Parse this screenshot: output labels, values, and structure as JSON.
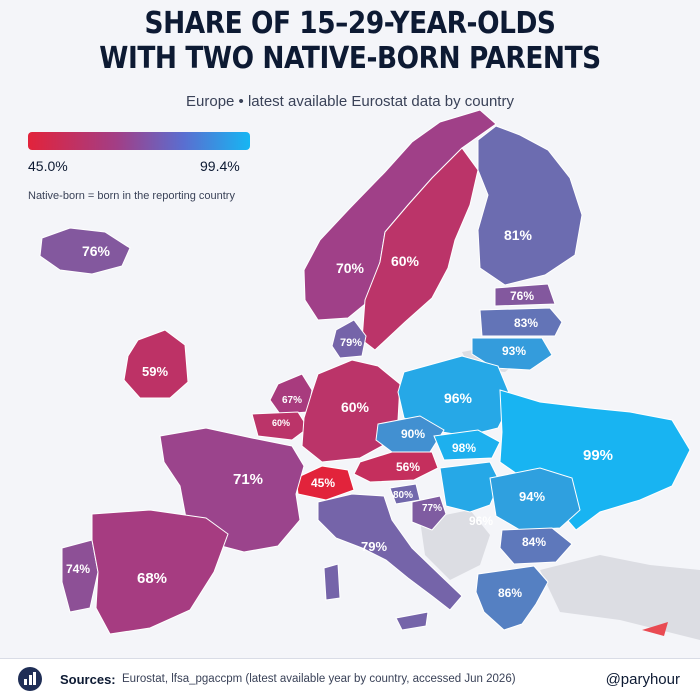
{
  "title_line1": "SHARE OF 15–29-YEAR-OLDS",
  "title_line2": "WITH TWO NATIVE-BORN PARENTS",
  "subtitle": "Europe • latest available Eurostat data by country",
  "legend": {
    "min_label": "45.0%",
    "max_label": "99.4%",
    "min_value": 45.0,
    "max_value": 99.4,
    "color_low": "#e2233b",
    "color_mid": "#a23e86",
    "color_high": "#16b6f3"
  },
  "note": "Native-born = born in the reporting country",
  "countries": [
    {
      "key": "iceland",
      "label": "76%",
      "value": 76
    },
    {
      "key": "norway",
      "label": "70%",
      "value": 70
    },
    {
      "key": "sweden",
      "label": "60%",
      "value": 60
    },
    {
      "key": "finland",
      "label": "81%",
      "value": 81
    },
    {
      "key": "estonia",
      "label": "76%",
      "value": 76
    },
    {
      "key": "latvia",
      "label": "83%",
      "value": 83
    },
    {
      "key": "lithuania",
      "label": "93%",
      "value": 93
    },
    {
      "key": "denmark",
      "label": "79%",
      "value": 79
    },
    {
      "key": "ireland",
      "label": "59%",
      "value": 59
    },
    {
      "key": "netherlands",
      "label": "67%",
      "value": 67
    },
    {
      "key": "belgium",
      "label": "60%",
      "value": 60
    },
    {
      "key": "germany",
      "label": "60%",
      "value": 60
    },
    {
      "key": "poland",
      "label": "96%",
      "value": 96
    },
    {
      "key": "czechia",
      "label": "90%",
      "value": 90
    },
    {
      "key": "slovakia",
      "label": "98%",
      "value": 98
    },
    {
      "key": "ukraine",
      "label": "99%",
      "value": 99
    },
    {
      "key": "austria",
      "label": "56%",
      "value": 56
    },
    {
      "key": "switzerland",
      "label": "45%",
      "value": 45
    },
    {
      "key": "france",
      "label": "71%",
      "value": 71
    },
    {
      "key": "slovenia",
      "label": "80%",
      "value": 80
    },
    {
      "key": "croatia",
      "label": "77%",
      "value": 77
    },
    {
      "key": "hungary",
      "label": "96%",
      "value": 96
    },
    {
      "key": "romania",
      "label": "94%",
      "value": 94
    },
    {
      "key": "bulgaria",
      "label": "84%",
      "value": 84
    },
    {
      "key": "italy",
      "label": "79%",
      "value": 79
    },
    {
      "key": "portugal",
      "label": "74%",
      "value": 74
    },
    {
      "key": "spain",
      "label": "68%",
      "value": 68
    },
    {
      "key": "greece",
      "label": "86%",
      "value": 86
    }
  ],
  "footer": {
    "sources_label": "Sources:",
    "sources_text": "Eurostat,  lfsa_pgaccpm (latest available year by country, accessed Jun 2026)",
    "handle": "@paryhour"
  }
}
